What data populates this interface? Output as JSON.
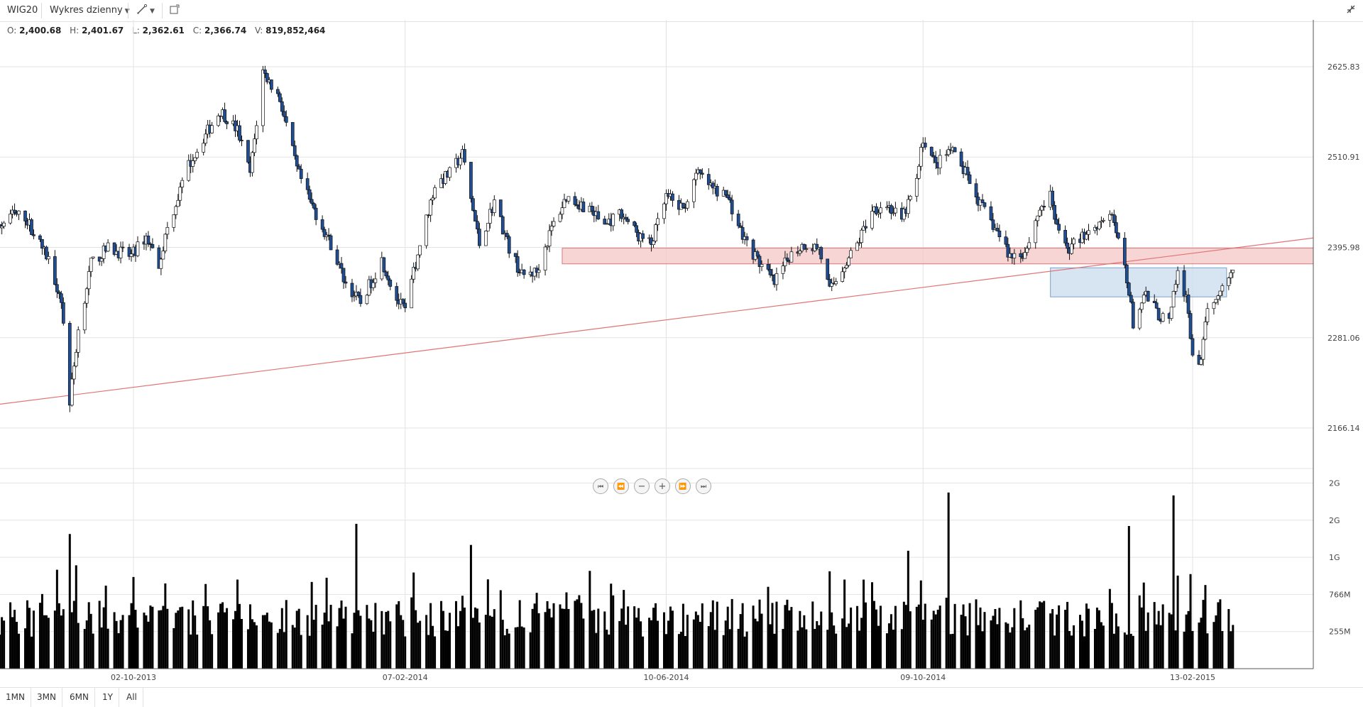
{
  "toolbar": {
    "symbol": "WIG20",
    "chart_type_label": "Wykres dzienny"
  },
  "ohlc": {
    "o_label": "O:",
    "o_value": "2,400.68",
    "h_label": "H:",
    "h_value": "2,401.67",
    "l_label": "L:",
    "l_value": "2,362.61",
    "c_label": "C:",
    "c_value": "2,366.74",
    "v_label": "V:",
    "v_value": "819,852,464"
  },
  "periods": [
    "1MN",
    "3MN",
    "6MN",
    "1Y",
    "All"
  ],
  "colors": {
    "down_fill": "#1f4e94",
    "up_fill": "#ffffff",
    "resistance_zone": "#f4c7c7",
    "support_zone": "#c9dcee",
    "trendline": "#e07474"
  },
  "chart_data": {
    "type": "candlestick",
    "x_ticks": [
      "02-10-2013",
      "07-02-2014",
      "10-06-2014",
      "09-10-2014",
      "13-02-2015"
    ],
    "price_ticks": [
      "2625.83",
      "2510.91",
      "2395.98",
      "2281.06",
      "2166.14"
    ],
    "price_range": [
      2150,
      2690
    ],
    "volume_ticks": [
      "2G",
      "2G",
      "1G",
      "766M",
      "255M"
    ],
    "volume_tick_values": [
      2550,
      2040,
      1530,
      1020,
      510
    ],
    "volume_range": [
      0,
      2750
    ],
    "trendline": {
      "start": {
        "date": "2013-07-18",
        "price": 2192
      },
      "end": {
        "date": "2015-03-04",
        "price": 2395
      }
    },
    "resistance_zone": {
      "from": "2014-04-22",
      "to": "2015-03-04",
      "low": 2375,
      "high": 2395
    },
    "support_zone": {
      "from": "2014-12-08",
      "to": "2015-03-01",
      "low": 2333,
      "high": 2370
    },
    "anchors": [
      [
        "2013-07-18",
        2393
      ],
      [
        "2013-07-24",
        2400
      ],
      [
        "2013-08-05",
        2438
      ],
      [
        "2013-08-12",
        2435
      ],
      [
        "2013-08-23",
        2380
      ],
      [
        "2013-08-29",
        2330
      ],
      [
        "2013-09-02",
        2200
      ],
      [
        "2013-09-06",
        2290
      ],
      [
        "2013-09-12",
        2375
      ],
      [
        "2013-09-20",
        2395
      ],
      [
        "2013-10-01",
        2385
      ],
      [
        "2013-10-08",
        2410
      ],
      [
        "2013-10-14",
        2375
      ],
      [
        "2013-10-18",
        2420
      ],
      [
        "2013-10-28",
        2500
      ],
      [
        "2013-11-05",
        2540
      ],
      [
        "2013-11-12",
        2570
      ],
      [
        "2013-11-20",
        2545
      ],
      [
        "2013-11-26",
        2490
      ],
      [
        "2013-12-02",
        2620
      ],
      [
        "2013-12-10",
        2585
      ],
      [
        "2013-12-18",
        2495
      ],
      [
        "2013-12-24",
        2455
      ],
      [
        "2014-01-03",
        2400
      ],
      [
        "2014-01-10",
        2350
      ],
      [
        "2014-01-17",
        2325
      ],
      [
        "2014-01-27",
        2380
      ],
      [
        "2014-02-03",
        2330
      ],
      [
        "2014-02-07",
        2315
      ],
      [
        "2014-02-14",
        2400
      ],
      [
        "2014-02-21",
        2475
      ],
      [
        "2014-02-28",
        2490
      ],
      [
        "2014-03-06",
        2515
      ],
      [
        "2014-03-14",
        2400
      ],
      [
        "2014-03-21",
        2455
      ],
      [
        "2014-03-28",
        2395
      ],
      [
        "2014-04-03",
        2360
      ],
      [
        "2014-04-10",
        2365
      ],
      [
        "2014-04-17",
        2420
      ],
      [
        "2014-04-24",
        2460
      ],
      [
        "2014-05-05",
        2445
      ],
      [
        "2014-05-12",
        2425
      ],
      [
        "2014-05-20",
        2440
      ],
      [
        "2014-05-28",
        2410
      ],
      [
        "2014-06-03",
        2400
      ],
      [
        "2014-06-10",
        2460
      ],
      [
        "2014-06-18",
        2445
      ],
      [
        "2014-06-25",
        2490
      ],
      [
        "2014-07-02",
        2470
      ],
      [
        "2014-07-09",
        2460
      ],
      [
        "2014-07-16",
        2410
      ],
      [
        "2014-07-23",
        2380
      ],
      [
        "2014-07-31",
        2350
      ],
      [
        "2014-08-07",
        2385
      ],
      [
        "2014-08-14",
        2400
      ],
      [
        "2014-08-21",
        2395
      ],
      [
        "2014-08-26",
        2340
      ],
      [
        "2014-09-01",
        2370
      ],
      [
        "2014-09-08",
        2400
      ],
      [
        "2014-09-15",
        2445
      ],
      [
        "2014-09-22",
        2450
      ],
      [
        "2014-09-29",
        2430
      ],
      [
        "2014-10-06",
        2480
      ],
      [
        "2014-10-09",
        2535
      ],
      [
        "2014-10-15",
        2500
      ],
      [
        "2014-10-22",
        2520
      ],
      [
        "2014-10-29",
        2490
      ],
      [
        "2014-11-05",
        2450
      ],
      [
        "2014-11-12",
        2420
      ],
      [
        "2014-11-19",
        2385
      ],
      [
        "2014-11-26",
        2390
      ],
      [
        "2014-12-03",
        2445
      ],
      [
        "2014-12-08",
        2460
      ],
      [
        "2014-12-12",
        2410
      ],
      [
        "2014-12-17",
        2395
      ],
      [
        "2014-12-23",
        2410
      ],
      [
        "2015-01-05",
        2440
      ],
      [
        "2015-01-12",
        2375
      ],
      [
        "2015-01-16",
        2300
      ],
      [
        "2015-01-22",
        2335
      ],
      [
        "2015-01-28",
        2310
      ],
      [
        "2015-02-02",
        2300
      ],
      [
        "2015-02-06",
        2365
      ],
      [
        "2015-02-10",
        2330
      ],
      [
        "2015-02-13",
        2260
      ],
      [
        "2015-02-17",
        2250
      ],
      [
        "2015-02-20",
        2315
      ],
      [
        "2015-02-26",
        2345
      ],
      [
        "2015-03-02",
        2355
      ],
      [
        "2015-03-04",
        2370
      ]
    ]
  }
}
